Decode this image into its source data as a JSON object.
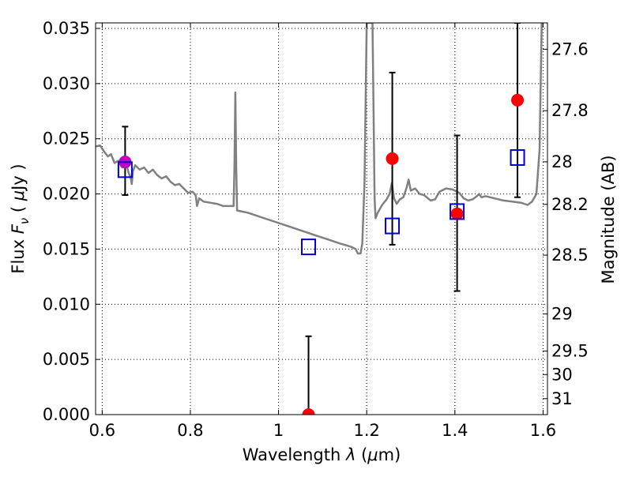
{
  "chart_data": {
    "type": "scatter",
    "xlabel_prefix": "Wavelength",
    "xlabel_symbol": "λ",
    "xlabel_unit_open": "(",
    "xlabel_unit_mu": "μ",
    "xlabel_unit_rest": "m)",
    "ylabel_prefix": "Flux",
    "ylabel_symbol": "F",
    "ylabel_sub": "ν",
    "ylabel_unit_open": "(",
    "ylabel_unit_mu": "μ",
    "ylabel_unit_rest": "Jy )",
    "y2label": "Magnitude (AB)",
    "xlim": [
      0.585,
      1.61
    ],
    "ylim": [
      0.0,
      0.0355
    ],
    "grid": true,
    "x_ticks": [
      {
        "value": 0.6,
        "label": "0.6"
      },
      {
        "value": 0.8,
        "label": "0.8"
      },
      {
        "value": 1.0,
        "label": "1"
      },
      {
        "value": 1.2,
        "label": "1.2"
      },
      {
        "value": 1.4,
        "label": "1.4"
      },
      {
        "value": 1.6,
        "label": "1.6"
      }
    ],
    "y_ticks": [
      {
        "value": 0.0,
        "label": "0.000"
      },
      {
        "value": 0.005,
        "label": "0.005"
      },
      {
        "value": 0.01,
        "label": "0.010"
      },
      {
        "value": 0.015,
        "label": "0.015"
      },
      {
        "value": 0.02,
        "label": "0.020"
      },
      {
        "value": 0.025,
        "label": "0.025"
      },
      {
        "value": 0.03,
        "label": "0.030"
      },
      {
        "value": 0.035,
        "label": "0.035"
      }
    ],
    "y2_ticks": [
      {
        "mag": 27.6,
        "label": "27.6"
      },
      {
        "mag": 27.8,
        "label": "27.8"
      },
      {
        "mag": 28.0,
        "label": "28"
      },
      {
        "mag": 28.2,
        "label": "28.2"
      },
      {
        "mag": 28.5,
        "label": "28.5"
      },
      {
        "mag": 29.0,
        "label": "29"
      },
      {
        "mag": 29.5,
        "label": "29.5"
      },
      {
        "mag": 30.0,
        "label": "30"
      },
      {
        "mag": 31.0,
        "label": "31"
      }
    ],
    "model_spectrum": {
      "color": "#808080",
      "points": [
        [
          0.585,
          0.0243
        ],
        [
          0.595,
          0.0244
        ],
        [
          0.605,
          0.0238
        ],
        [
          0.613,
          0.0234
        ],
        [
          0.62,
          0.0236
        ],
        [
          0.628,
          0.0228
        ],
        [
          0.636,
          0.023
        ],
        [
          0.645,
          0.0224
        ],
        [
          0.653,
          0.0229
        ],
        [
          0.66,
          0.0219
        ],
        [
          0.665,
          0.0214
        ],
        [
          0.667,
          0.0209
        ],
        [
          0.67,
          0.0221
        ],
        [
          0.675,
          0.0226
        ],
        [
          0.685,
          0.0222
        ],
        [
          0.695,
          0.0224
        ],
        [
          0.705,
          0.0219
        ],
        [
          0.715,
          0.0222
        ],
        [
          0.725,
          0.0217
        ],
        [
          0.735,
          0.0214
        ],
        [
          0.745,
          0.0216
        ],
        [
          0.755,
          0.0211
        ],
        [
          0.765,
          0.0208
        ],
        [
          0.775,
          0.0209
        ],
        [
          0.785,
          0.0205
        ],
        [
          0.795,
          0.0201
        ],
        [
          0.805,
          0.0202
        ],
        [
          0.812,
          0.0199
        ],
        [
          0.815,
          0.0189
        ],
        [
          0.82,
          0.0196
        ],
        [
          0.83,
          0.0193
        ],
        [
          0.845,
          0.0192
        ],
        [
          0.86,
          0.0191
        ],
        [
          0.875,
          0.0189
        ],
        [
          0.89,
          0.0189
        ],
        [
          0.898,
          0.0189
        ],
        [
          0.9,
          0.0225
        ],
        [
          0.902,
          0.0292
        ],
        [
          0.904,
          0.0225
        ],
        [
          0.906,
          0.0185
        ],
        [
          0.93,
          0.0183
        ],
        [
          0.96,
          0.0179
        ],
        [
          0.99,
          0.0175
        ],
        [
          1.02,
          0.0171
        ],
        [
          1.05,
          0.0167
        ],
        [
          1.08,
          0.0163
        ],
        [
          1.11,
          0.0159
        ],
        [
          1.14,
          0.0155
        ],
        [
          1.165,
          0.0152
        ],
        [
          1.175,
          0.015
        ],
        [
          1.18,
          0.0146
        ],
        [
          1.186,
          0.0146
        ],
        [
          1.19,
          0.0155
        ],
        [
          1.195,
          0.021
        ],
        [
          1.2,
          0.0355
        ],
        [
          1.213,
          0.0355
        ],
        [
          1.216,
          0.026
        ],
        [
          1.218,
          0.0195
        ],
        [
          1.22,
          0.0178
        ],
        [
          1.225,
          0.0183
        ],
        [
          1.235,
          0.019
        ],
        [
          1.245,
          0.0195
        ],
        [
          1.252,
          0.02
        ],
        [
          1.257,
          0.021
        ],
        [
          1.262,
          0.0196
        ],
        [
          1.268,
          0.0191
        ],
        [
          1.275,
          0.0195
        ],
        [
          1.283,
          0.0197
        ],
        [
          1.29,
          0.0205
        ],
        [
          1.295,
          0.0213
        ],
        [
          1.3,
          0.0203
        ],
        [
          1.31,
          0.0205
        ],
        [
          1.32,
          0.02
        ],
        [
          1.33,
          0.0199
        ],
        [
          1.345,
          0.0194
        ],
        [
          1.355,
          0.0195
        ],
        [
          1.365,
          0.0202
        ],
        [
          1.38,
          0.0205
        ],
        [
          1.395,
          0.0204
        ],
        [
          1.41,
          0.0201
        ],
        [
          1.42,
          0.0196
        ],
        [
          1.43,
          0.0194
        ],
        [
          1.44,
          0.0195
        ],
        [
          1.45,
          0.0198
        ],
        [
          1.455,
          0.02
        ],
        [
          1.46,
          0.0197
        ],
        [
          1.47,
          0.0198
        ],
        [
          1.49,
          0.0196
        ],
        [
          1.51,
          0.0194
        ],
        [
          1.53,
          0.0193
        ],
        [
          1.55,
          0.0192
        ],
        [
          1.565,
          0.019
        ],
        [
          1.575,
          0.0193
        ],
        [
          1.585,
          0.02
        ],
        [
          1.592,
          0.024
        ],
        [
          1.597,
          0.0355
        ]
      ]
    },
    "error_bars": [
      {
        "x": 0.652,
        "y": 0.0229,
        "low": 0.0199,
        "high": 0.0261
      },
      {
        "x": 1.068,
        "y": 0.0,
        "low": 0.0,
        "high": 0.0071
      },
      {
        "x": 1.258,
        "y": 0.0232,
        "low": 0.0154,
        "high": 0.031
      },
      {
        "x": 1.405,
        "y": 0.0182,
        "low": 0.0112,
        "high": 0.0253
      },
      {
        "x": 1.542,
        "y": 0.0285,
        "low": 0.0197,
        "high": 0.0355
      }
    ],
    "observed_points": [
      {
        "x": 0.652,
        "y": 0.0229,
        "color": "#bf00bf"
      },
      {
        "x": 1.068,
        "y": 0.0,
        "color": "#ff0000"
      },
      {
        "x": 1.258,
        "y": 0.0232,
        "color": "#ff0000"
      },
      {
        "x": 1.405,
        "y": 0.0182,
        "color": "#ff0000"
      },
      {
        "x": 1.542,
        "y": 0.0285,
        "color": "#ff0000"
      }
    ],
    "model_squares": [
      {
        "x": 0.652,
        "y": 0.0222
      },
      {
        "x": 1.068,
        "y": 0.0152
      },
      {
        "x": 1.258,
        "y": 0.0171
      },
      {
        "x": 1.405,
        "y": 0.0184
      },
      {
        "x": 1.542,
        "y": 0.0233
      }
    ],
    "colors": {
      "square": "#0000cc",
      "errorbar": "#000000",
      "grid": "#000000"
    }
  }
}
